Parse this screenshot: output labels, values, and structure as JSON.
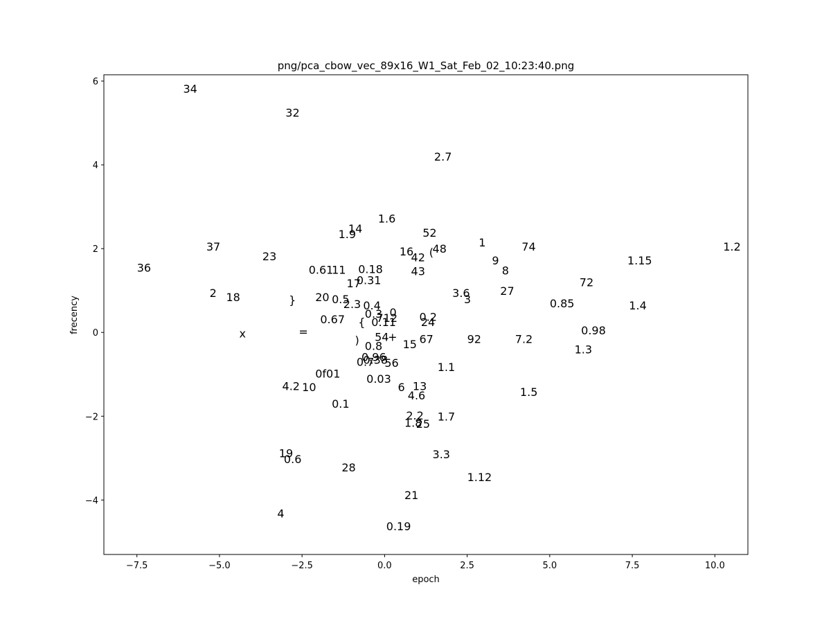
{
  "chart_data": {
    "type": "scatter",
    "title": "png/pca_cbow_vec_89x16_W1_Sat_Feb_02_10:23:40.png",
    "xlabel": "epoch",
    "ylabel": "frecency",
    "xlim": [
      -8.5,
      11.0
    ],
    "ylim": [
      -5.3,
      6.15
    ],
    "xticks": [
      -7.5,
      -5.0,
      -2.5,
      0.0,
      2.5,
      5.0,
      7.5,
      10.0
    ],
    "xtick_labels": [
      "−7.5",
      "−5.0",
      "−2.5",
      "0.0",
      "2.5",
      "5.0",
      "7.5",
      "10.0"
    ],
    "yticks": [
      -4,
      -2,
      0,
      2,
      4,
      6
    ],
    "ytick_labels": [
      "−4",
      "−2",
      "0",
      "2",
      "4",
      "6"
    ],
    "grid": false,
    "points": [
      {
        "label": "34",
        "x": -6.1,
        "y": 5.72
      },
      {
        "label": "32",
        "x": -3.0,
        "y": 5.15
      },
      {
        "label": "2.7",
        "x": 1.5,
        "y": 4.1
      },
      {
        "label": "1.6",
        "x": -0.2,
        "y": 2.62
      },
      {
        "label": "14",
        "x": -1.1,
        "y": 2.38
      },
      {
        "label": "1.9",
        "x": -1.4,
        "y": 2.25
      },
      {
        "label": "52",
        "x": 1.15,
        "y": 2.28
      },
      {
        "label": "1",
        "x": 2.85,
        "y": 2.05
      },
      {
        "label": "74",
        "x": 4.15,
        "y": 1.95
      },
      {
        "label": "1.2",
        "x": 10.25,
        "y": 1.95
      },
      {
        "label": "37",
        "x": -5.4,
        "y": 1.95
      },
      {
        "label": "23",
        "x": -3.7,
        "y": 1.72
      },
      {
        "label": "16",
        "x": 0.45,
        "y": 1.84
      },
      {
        "label": "48",
        "x": 1.45,
        "y": 1.9
      },
      {
        "label": "(",
        "x": 1.35,
        "y": 1.82
      },
      {
        "label": "42",
        "x": 0.8,
        "y": 1.7
      },
      {
        "label": "9",
        "x": 3.25,
        "y": 1.62
      },
      {
        "label": "1.15",
        "x": 7.35,
        "y": 1.62
      },
      {
        "label": "36",
        "x": -7.5,
        "y": 1.45
      },
      {
        "label": "0.61",
        "x": -2.3,
        "y": 1.4
      },
      {
        "label": "11",
        "x": -1.6,
        "y": 1.4
      },
      {
        "label": "0.18",
        "x": -0.8,
        "y": 1.42
      },
      {
        "label": "43",
        "x": 0.8,
        "y": 1.37
      },
      {
        "label": "8",
        "x": 3.55,
        "y": 1.38
      },
      {
        "label": "0.31",
        "x": -0.85,
        "y": 1.15
      },
      {
        "label": "17",
        "x": -1.15,
        "y": 1.08
      },
      {
        "label": "72",
        "x": 5.9,
        "y": 1.1
      },
      {
        "label": "27",
        "x": 3.5,
        "y": 0.9
      },
      {
        "label": "3.6",
        "x": 2.05,
        "y": 0.85
      },
      {
        "label": "2",
        "x": -5.3,
        "y": 0.85
      },
      {
        "label": "18",
        "x": -4.8,
        "y": 0.75
      },
      {
        "label": "20",
        "x": -2.1,
        "y": 0.75
      },
      {
        "label": "0.5",
        "x": -1.6,
        "y": 0.7
      },
      {
        "label": "}",
        "x": -2.9,
        "y": 0.68
      },
      {
        "label": "3",
        "x": 2.4,
        "y": 0.7
      },
      {
        "label": "2.3",
        "x": -1.25,
        "y": 0.58
      },
      {
        "label": "0.4",
        "x": -0.65,
        "y": 0.55
      },
      {
        "label": "0.85",
        "x": 5.0,
        "y": 0.6
      },
      {
        "label": "1.4",
        "x": 7.4,
        "y": 0.55
      },
      {
        "label": "0.3",
        "x": -0.6,
        "y": 0.35
      },
      {
        "label": "0",
        "x": 0.15,
        "y": 0.38
      },
      {
        "label": "712",
        "x": -0.25,
        "y": 0.25
      },
      {
        "label": "0.2",
        "x": 1.05,
        "y": 0.28
      },
      {
        "label": "0.67",
        "x": -1.95,
        "y": 0.22
      },
      {
        "label": "{",
        "x": -0.8,
        "y": 0.15
      },
      {
        "label": "0.11",
        "x": -0.4,
        "y": 0.15
      },
      {
        "label": "24",
        "x": 1.1,
        "y": 0.15
      },
      {
        "label": "0.98",
        "x": 5.95,
        "y": -0.05
      },
      {
        "label": "=",
        "x": -2.6,
        "y": -0.08
      },
      {
        "label": "x",
        "x": -4.4,
        "y": -0.12
      },
      {
        "label": "54",
        "x": -0.3,
        "y": -0.2
      },
      {
        "label": "+",
        "x": 0.1,
        "y": -0.2
      },
      {
        "label": "67",
        "x": 1.05,
        "y": -0.25
      },
      {
        "label": "92",
        "x": 2.5,
        "y": -0.25
      },
      {
        "label": "7.2",
        "x": 3.95,
        "y": -0.25
      },
      {
        "label": ")",
        "x": -0.9,
        "y": -0.28
      },
      {
        "label": "15",
        "x": 0.55,
        "y": -0.38
      },
      {
        "label": "0.8",
        "x": -0.6,
        "y": -0.42
      },
      {
        "label": "1.3",
        "x": 5.75,
        "y": -0.5
      },
      {
        "label": "0.96",
        "x": -0.7,
        "y": -0.68
      },
      {
        "label": "0.7",
        "x": -0.85,
        "y": -0.8
      },
      {
        "label": "0.38",
        "x": -0.65,
        "y": -0.75
      },
      {
        "label": "56",
        "x": 0.0,
        "y": -0.82
      },
      {
        "label": "1.1",
        "x": 1.6,
        "y": -0.92
      },
      {
        "label": "0f01",
        "x": -2.1,
        "y": -1.08
      },
      {
        "label": "0.03",
        "x": -0.55,
        "y": -1.2
      },
      {
        "label": "4.2",
        "x": -3.1,
        "y": -1.38
      },
      {
        "label": "10",
        "x": -2.5,
        "y": -1.4
      },
      {
        "label": "6",
        "x": 0.4,
        "y": -1.4
      },
      {
        "label": "13",
        "x": 0.85,
        "y": -1.38
      },
      {
        "label": "4.6",
        "x": 0.7,
        "y": -1.6
      },
      {
        "label": "1.5",
        "x": 4.1,
        "y": -1.52
      },
      {
        "label": "0.1",
        "x": -1.6,
        "y": -1.8
      },
      {
        "label": "2.2",
        "x": 0.65,
        "y": -2.08
      },
      {
        "label": "1.7",
        "x": 1.6,
        "y": -2.1
      },
      {
        "label": "1.8",
        "x": 0.6,
        "y": -2.25
      },
      {
        "label": "25",
        "x": 0.95,
        "y": -2.28
      },
      {
        "label": "19",
        "x": -3.2,
        "y": -2.98
      },
      {
        "label": "3.3",
        "x": 1.45,
        "y": -3.0
      },
      {
        "label": "0.6",
        "x": -3.05,
        "y": -3.12
      },
      {
        "label": "28",
        "x": -1.3,
        "y": -3.32
      },
      {
        "label": "1.12",
        "x": 2.5,
        "y": -3.55
      },
      {
        "label": "21",
        "x": 0.6,
        "y": -3.98
      },
      {
        "label": "4",
        "x": -3.25,
        "y": -4.42
      },
      {
        "label": "0.19",
        "x": 0.05,
        "y": -4.72
      }
    ]
  }
}
